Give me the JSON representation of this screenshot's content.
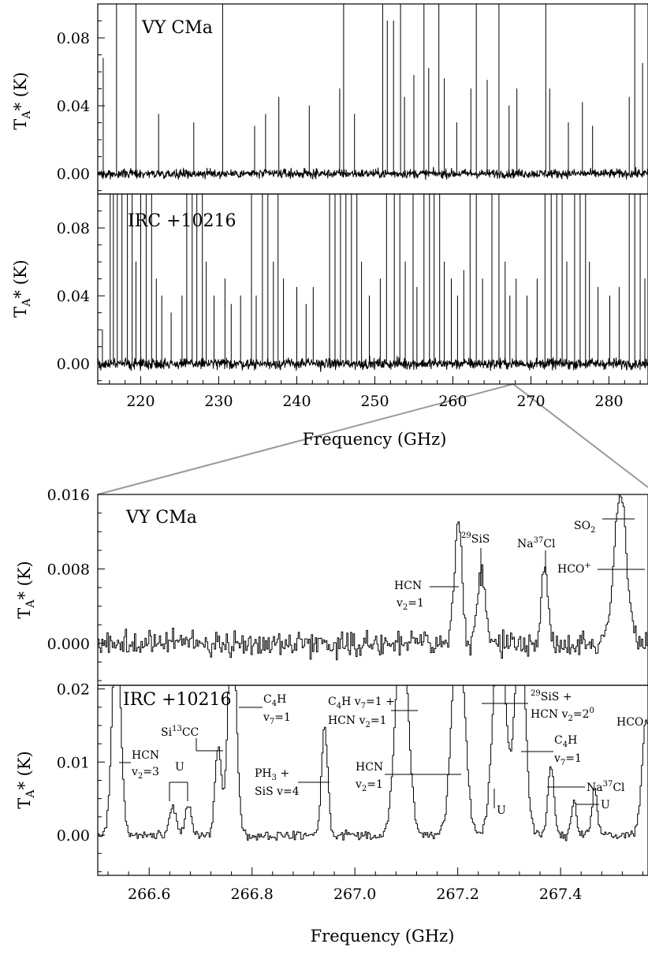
{
  "chart_data": [
    {
      "type": "line",
      "title": "",
      "xlabel": "Frequency (GHz)",
      "ylabel": "TA* (K)",
      "xlim": [
        214.5,
        285
      ],
      "xticks": [
        220,
        230,
        240,
        250,
        260,
        270,
        280
      ],
      "xtick_labels": [
        "220",
        "230",
        "240",
        "250",
        "260",
        "270",
        "280"
      ],
      "panels": [
        {
          "label": "VY CMa",
          "ylim": [
            -0.012,
            0.1
          ],
          "yticks": [
            0.0,
            0.04,
            0.08
          ],
          "ytick_labels": [
            "0.00",
            "0.04",
            "0.08"
          ],
          "noise_rms": 0.0025,
          "lines": [
            {
              "x": 215.2,
              "y": 0.068
            },
            {
              "x": 216.9,
              "y": 0.1
            },
            {
              "x": 219.4,
              "y": 0.1
            },
            {
              "x": 222.3,
              "y": 0.035
            },
            {
              "x": 226.8,
              "y": 0.03
            },
            {
              "x": 230.5,
              "y": 0.1
            },
            {
              "x": 234.6,
              "y": 0.028
            },
            {
              "x": 236.0,
              "y": 0.035
            },
            {
              "x": 237.7,
              "y": 0.045
            },
            {
              "x": 241.6,
              "y": 0.04
            },
            {
              "x": 245.5,
              "y": 0.05
            },
            {
              "x": 246.0,
              "y": 0.1
            },
            {
              "x": 247.4,
              "y": 0.035
            },
            {
              "x": 251.0,
              "y": 0.1
            },
            {
              "x": 251.6,
              "y": 0.09
            },
            {
              "x": 252.4,
              "y": 0.09
            },
            {
              "x": 253.3,
              "y": 0.1
            },
            {
              "x": 253.8,
              "y": 0.045
            },
            {
              "x": 255.0,
              "y": 0.058
            },
            {
              "x": 256.3,
              "y": 0.1
            },
            {
              "x": 256.9,
              "y": 0.062
            },
            {
              "x": 258.2,
              "y": 0.1
            },
            {
              "x": 258.9,
              "y": 0.056
            },
            {
              "x": 260.5,
              "y": 0.03
            },
            {
              "x": 262.3,
              "y": 0.05
            },
            {
              "x": 263.0,
              "y": 0.1
            },
            {
              "x": 264.4,
              "y": 0.055
            },
            {
              "x": 265.9,
              "y": 0.1
            },
            {
              "x": 267.2,
              "y": 0.04
            },
            {
              "x": 268.2,
              "y": 0.05
            },
            {
              "x": 271.9,
              "y": 0.1
            },
            {
              "x": 272.4,
              "y": 0.05
            },
            {
              "x": 274.8,
              "y": 0.03
            },
            {
              "x": 276.6,
              "y": 0.042
            },
            {
              "x": 277.9,
              "y": 0.028
            },
            {
              "x": 282.6,
              "y": 0.045
            },
            {
              "x": 283.3,
              "y": 0.1
            },
            {
              "x": 284.3,
              "y": 0.065
            }
          ]
        },
        {
          "label": "IRC +10216",
          "ylim": [
            -0.012,
            0.1
          ],
          "yticks": [
            0.0,
            0.04,
            0.08
          ],
          "ytick_labels": [
            "0.00",
            "0.04",
            "0.08"
          ],
          "noise_rms": 0.003,
          "lines": [
            {
              "x": 215.1,
              "y": 0.02
            },
            {
              "x": 216.1,
              "y": 0.1
            },
            {
              "x": 216.5,
              "y": 0.1
            },
            {
              "x": 217.0,
              "y": 0.1
            },
            {
              "x": 217.6,
              "y": 0.1
            },
            {
              "x": 218.3,
              "y": 0.1
            },
            {
              "x": 218.9,
              "y": 0.1
            },
            {
              "x": 219.4,
              "y": 0.06
            },
            {
              "x": 220.0,
              "y": 0.1
            },
            {
              "x": 220.7,
              "y": 0.1
            },
            {
              "x": 221.4,
              "y": 0.1
            },
            {
              "x": 222.0,
              "y": 0.05
            },
            {
              "x": 222.7,
              "y": 0.04
            },
            {
              "x": 223.9,
              "y": 0.03
            },
            {
              "x": 225.3,
              "y": 0.04
            },
            {
              "x": 225.9,
              "y": 0.1
            },
            {
              "x": 226.6,
              "y": 0.1
            },
            {
              "x": 227.2,
              "y": 0.1
            },
            {
              "x": 227.9,
              "y": 0.1
            },
            {
              "x": 228.4,
              "y": 0.06
            },
            {
              "x": 229.4,
              "y": 0.04
            },
            {
              "x": 230.8,
              "y": 0.05
            },
            {
              "x": 231.6,
              "y": 0.035
            },
            {
              "x": 232.8,
              "y": 0.04
            },
            {
              "x": 234.2,
              "y": 0.1
            },
            {
              "x": 234.8,
              "y": 0.04
            },
            {
              "x": 235.6,
              "y": 0.1
            },
            {
              "x": 236.3,
              "y": 0.1
            },
            {
              "x": 237.0,
              "y": 0.06
            },
            {
              "x": 237.6,
              "y": 0.1
            },
            {
              "x": 238.3,
              "y": 0.05
            },
            {
              "x": 240.0,
              "y": 0.045
            },
            {
              "x": 241.2,
              "y": 0.035
            },
            {
              "x": 242.1,
              "y": 0.045
            },
            {
              "x": 244.2,
              "y": 0.1
            },
            {
              "x": 244.9,
              "y": 0.1
            },
            {
              "x": 245.6,
              "y": 0.1
            },
            {
              "x": 246.3,
              "y": 0.1
            },
            {
              "x": 247.0,
              "y": 0.1
            },
            {
              "x": 247.7,
              "y": 0.1
            },
            {
              "x": 248.3,
              "y": 0.06
            },
            {
              "x": 249.3,
              "y": 0.04
            },
            {
              "x": 250.7,
              "y": 0.05
            },
            {
              "x": 251.5,
              "y": 0.1
            },
            {
              "x": 252.5,
              "y": 0.1
            },
            {
              "x": 253.2,
              "y": 0.1
            },
            {
              "x": 253.9,
              "y": 0.06
            },
            {
              "x": 254.9,
              "y": 0.1
            },
            {
              "x": 255.4,
              "y": 0.045
            },
            {
              "x": 256.3,
              "y": 0.1
            },
            {
              "x": 257.0,
              "y": 0.1
            },
            {
              "x": 257.6,
              "y": 0.1
            },
            {
              "x": 258.3,
              "y": 0.1
            },
            {
              "x": 258.9,
              "y": 0.06
            },
            {
              "x": 259.8,
              "y": 0.05
            },
            {
              "x": 260.6,
              "y": 0.04
            },
            {
              "x": 261.4,
              "y": 0.055
            },
            {
              "x": 262.2,
              "y": 0.1
            },
            {
              "x": 263.0,
              "y": 0.1
            },
            {
              "x": 263.8,
              "y": 0.05
            },
            {
              "x": 265.0,
              "y": 0.1
            },
            {
              "x": 265.9,
              "y": 0.1
            },
            {
              "x": 266.7,
              "y": 0.06
            },
            {
              "x": 267.3,
              "y": 0.04
            },
            {
              "x": 268.1,
              "y": 0.05
            },
            {
              "x": 269.5,
              "y": 0.04
            },
            {
              "x": 270.8,
              "y": 0.05
            },
            {
              "x": 271.8,
              "y": 0.1
            },
            {
              "x": 272.6,
              "y": 0.1
            },
            {
              "x": 273.3,
              "y": 0.1
            },
            {
              "x": 274.0,
              "y": 0.1
            },
            {
              "x": 274.6,
              "y": 0.06
            },
            {
              "x": 275.6,
              "y": 0.1
            },
            {
              "x": 276.3,
              "y": 0.1
            },
            {
              "x": 277.0,
              "y": 0.1
            },
            {
              "x": 277.5,
              "y": 0.06
            },
            {
              "x": 278.6,
              "y": 0.045
            },
            {
              "x": 280.1,
              "y": 0.04
            },
            {
              "x": 281.3,
              "y": 0.045
            },
            {
              "x": 282.6,
              "y": 0.1
            },
            {
              "x": 283.3,
              "y": 0.1
            },
            {
              "x": 284.0,
              "y": 0.1
            },
            {
              "x": 284.6,
              "y": 0.05
            }
          ]
        }
      ]
    },
    {
      "type": "line",
      "title": "",
      "xlabel": "Frequency (GHz)",
      "ylabel": "TA* (K)",
      "xlim": [
        266.5,
        267.57
      ],
      "xticks": [
        266.6,
        266.8,
        267.0,
        267.2,
        267.4
      ],
      "xtick_labels": [
        "266.6",
        "266.8",
        "267.0",
        "267.2",
        "267.4"
      ],
      "panels": [
        {
          "label": "VY CMa",
          "ylim": [
            -0.0045,
            0.016
          ],
          "yticks": [
            0.0,
            0.008,
            0.016
          ],
          "ytick_labels": [
            "0.000",
            "0.008",
            "0.016"
          ],
          "noise_rms": 0.0012,
          "lines": [
            {
              "x": 267.2,
              "y": 0.0133,
              "w": 0.007
            },
            {
              "x": 267.244,
              "y": 0.0075,
              "w": 0.008
            },
            {
              "x": 267.368,
              "y": 0.0075,
              "w": 0.007
            },
            {
              "x": 267.515,
              "y": 0.0165,
              "w": 0.012
            }
          ],
          "annotations": [
            {
              "text": "HCN v2=1",
              "lines": [
                "HCN",
                "v",
                "2",
                "=1"
              ]
            },
            {
              "text": "29SiS",
              "sup": "29",
              "main": "SiS"
            },
            {
              "text": "Na37Cl",
              "pre": "Na",
              "sup": "37",
              "post": "Cl"
            },
            {
              "text": "SO2",
              "main": "SO",
              "sub": "2"
            },
            {
              "text": "HCO+",
              "main": "HCO",
              "sup": "+"
            }
          ]
        },
        {
          "label": "IRC +10216",
          "ylim": [
            -0.0055,
            0.0205
          ],
          "yticks": [
            0.0,
            0.01,
            0.02
          ],
          "ytick_labels": [
            "0.00",
            "0.01",
            "0.02"
          ],
          "noise_rms": 0.0006,
          "lines": [
            {
              "x": 266.535,
              "y": 0.03,
              "w": 0.008
            },
            {
              "x": 266.645,
              "y": 0.004,
              "w": 0.006
            },
            {
              "x": 266.675,
              "y": 0.004,
              "w": 0.006
            },
            {
              "x": 266.733,
              "y": 0.012,
              "w": 0.006
            },
            {
              "x": 266.76,
              "y": 0.03,
              "w": 0.008
            },
            {
              "x": 266.94,
              "y": 0.015,
              "w": 0.006
            },
            {
              "x": 267.09,
              "y": 0.03,
              "w": 0.012
            },
            {
              "x": 267.2,
              "y": 0.03,
              "w": 0.012
            },
            {
              "x": 267.28,
              "y": 0.03,
              "w": 0.012
            },
            {
              "x": 267.32,
              "y": 0.03,
              "w": 0.01
            },
            {
              "x": 267.38,
              "y": 0.0095,
              "w": 0.006
            },
            {
              "x": 267.425,
              "y": 0.0048,
              "w": 0.005
            },
            {
              "x": 267.465,
              "y": 0.0065,
              "w": 0.005
            },
            {
              "x": 267.565,
              "y": 0.016,
              "w": 0.008
            }
          ],
          "annotations": [
            {
              "text": "IRC +10216"
            },
            {
              "text": "HCN v2=3"
            },
            {
              "text": "U"
            },
            {
              "text": "Si13CC"
            },
            {
              "text": "C4H v7=1"
            },
            {
              "text": "PH3 + SiS v=4"
            },
            {
              "text": "C4H v7=1 + HCN v2=1"
            },
            {
              "text": "HCN v2=1"
            },
            {
              "text": "29SiS + HCN v2=20"
            },
            {
              "text": "U"
            },
            {
              "text": "C4H v7=1"
            },
            {
              "text": "Na37Cl"
            },
            {
              "text": "U"
            },
            {
              "text": "HCO"
            }
          ]
        }
      ]
    }
  ],
  "text": {
    "top_vy": "VY CMa",
    "top_irc": "IRC +10216",
    "ylabel_main": "T",
    "ylabel_sub": "A",
    "ylabel_rest": "* (K)",
    "xlabel": "Frequency (GHz)",
    "b_hcn_a": "HCN",
    "b_hcn_b": "v",
    "b_hcn_sub": "2",
    "b_hcn_c": "=1",
    "b_29_sup": "29",
    "b_29_main": "SiS",
    "b_na_pre": "Na",
    "b_na_sup": "37",
    "b_na_post": "Cl",
    "b_so_main": "SO",
    "b_so_sub": "2",
    "b_hco_main": "HCO",
    "b_hco_sup": "+",
    "c_hcn3_a": "HCN",
    "c_hcn3_b": "v",
    "c_hcn3_sub": "2",
    "c_hcn3_c": "=3",
    "c_u": "U",
    "c_si_pre": "Si",
    "c_si_sup": "13",
    "c_si_post": "CC",
    "c_c4h_a": "C",
    "c_c4h_sub": "4",
    "c_c4h_b": "H",
    "c_v7_a": "v",
    "c_v7_sub": "7",
    "c_v7_b": "=1",
    "c_ph_a": "PH",
    "c_ph_sub": "3",
    "c_ph_b": " +",
    "c_sis4": "SiS v=4",
    "c_c4h2_a": "C",
    "c_c4h2_sub": "4",
    "c_c4h2_b": "H v",
    "c_c4h2_sub2": "7",
    "c_c4h2_c": "=1 +",
    "c_hcnv_a": "HCN v",
    "c_hcnv_sub": "2",
    "c_hcnv_b": "=1",
    "c_hcn1_a": "HCN",
    "c_hcn1_b": "v",
    "c_hcn1_sub": "2",
    "c_hcn1_c": "=1",
    "c_29_sup": "29",
    "c_29_main": "SiS +",
    "c_hcn20_a": "HCN v",
    "c_hcn20_sub": "2",
    "c_hcn20_b": "=2",
    "c_hcn20_sup": "0",
    "c_c4h3_a": "C",
    "c_c4h3_sub": "4",
    "c_c4h3_b": "H",
    "c_v73_a": "v",
    "c_v73_sub": "7",
    "c_v73_b": "=1",
    "c_na_pre": "Na",
    "c_na_sup": "37",
    "c_na_post": "Cl",
    "c_hco": "HCO"
  }
}
